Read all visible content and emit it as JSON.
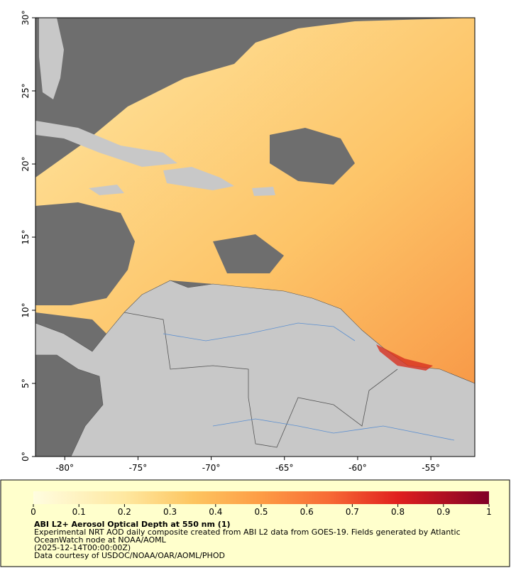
{
  "map": {
    "xlim": [
      -82,
      -52
    ],
    "ylim": [
      0,
      30
    ],
    "xticks": [
      {
        "value": -80,
        "label": "-80°"
      },
      {
        "value": -75,
        "label": "-75°"
      },
      {
        "value": -70,
        "label": "-70°"
      },
      {
        "value": -65,
        "label": "-65°"
      },
      {
        "value": -60,
        "label": "-60°"
      },
      {
        "value": -55,
        "label": "-55°"
      }
    ],
    "yticks": [
      {
        "value": 0,
        "label": "0°"
      },
      {
        "value": 5,
        "label": "5°"
      },
      {
        "value": 10,
        "label": "10°"
      },
      {
        "value": 15,
        "label": "15°"
      },
      {
        "value": 20,
        "label": "20°"
      },
      {
        "value": 25,
        "label": "25°"
      },
      {
        "value": 30,
        "label": "30°"
      }
    ]
  },
  "colorbar": {
    "lim": [
      0,
      1
    ],
    "ticks": [
      0,
      0.1,
      0.2,
      0.3,
      0.4,
      0.5,
      0.6,
      0.7,
      0.8,
      0.9,
      1
    ]
  },
  "caption": {
    "title": "ABI L2+ Aerosol Optical Depth at 550 nm (1)",
    "lines": [
      "Experimental NRT AOD daily composite created from ABI L2 data from GOES-19. Fields generated by Atlantic",
      "OceanWatch node at NOAA/AOML",
      "(2025-12-14T00:00:00Z)",
      "Data courtesy of USDOC/NOAA/OAR/AOML/PHOD"
    ]
  }
}
